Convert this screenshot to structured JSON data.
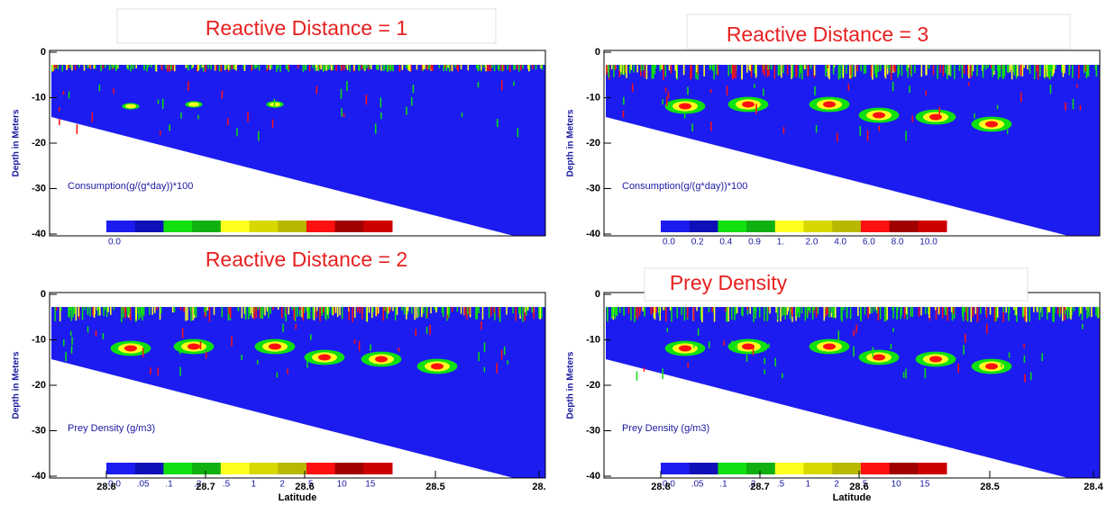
{
  "panels": [
    {
      "title": "Reactive Distance = 1",
      "y_label": "Depth in Meters",
      "y_ticks": [
        "0",
        "-10",
        "-20",
        "-30",
        "-40"
      ],
      "legend": "Consumption(g/(g*day))*100",
      "colorbar_labels": [
        "0.0"
      ]
    },
    {
      "title": "Reactive Distance = 3",
      "y_label": "Depth in Meters",
      "y_ticks": [
        "0",
        "-10",
        "-20",
        "-30",
        "-40"
      ],
      "legend": "Consumption(g/(g*day))*100",
      "colorbar_labels": [
        "0.0",
        "0.2",
        "0.4",
        "0.9",
        "1.",
        "2.0",
        "4.0",
        "6.0",
        "8.0",
        "10.0"
      ]
    },
    {
      "title": "Reactive Distance = 2",
      "y_label": "Depth in Meters",
      "y_ticks": [
        "0",
        "-10",
        "-20",
        "-30",
        "-40"
      ],
      "legend": "Prey Density (g/m3)",
      "colorbar_labels": [
        "0.0",
        ".05",
        ".1",
        ".2",
        ".5",
        "1",
        "2",
        "5",
        "10",
        "15"
      ],
      "x_ticks": [
        "28.8",
        "28.7",
        "28.6",
        "28.5",
        "28."
      ],
      "x_label": "Latitude"
    },
    {
      "title": "Prey Density",
      "y_label": "Depth in Meters",
      "y_ticks": [
        "0",
        "-10",
        "-20",
        "-30",
        "-40"
      ],
      "legend": "Prey Density (g/m3)",
      "colorbar_labels": [
        "0.0",
        ".05",
        ".1",
        ".2",
        ".5",
        "1",
        "2",
        "5",
        "10",
        "15"
      ],
      "x_ticks": [
        "28.8",
        "28.7",
        "28.6",
        "28.5",
        "28.4"
      ],
      "x_label": "Latitude"
    }
  ],
  "colorbar_colors": [
    "#1c1cf0",
    "#1010b8",
    "#10e010",
    "#10b010",
    "#ffff20",
    "#d8d800",
    "#b8b800",
    "#ff1010",
    "#a00000",
    "#cc0000"
  ]
}
